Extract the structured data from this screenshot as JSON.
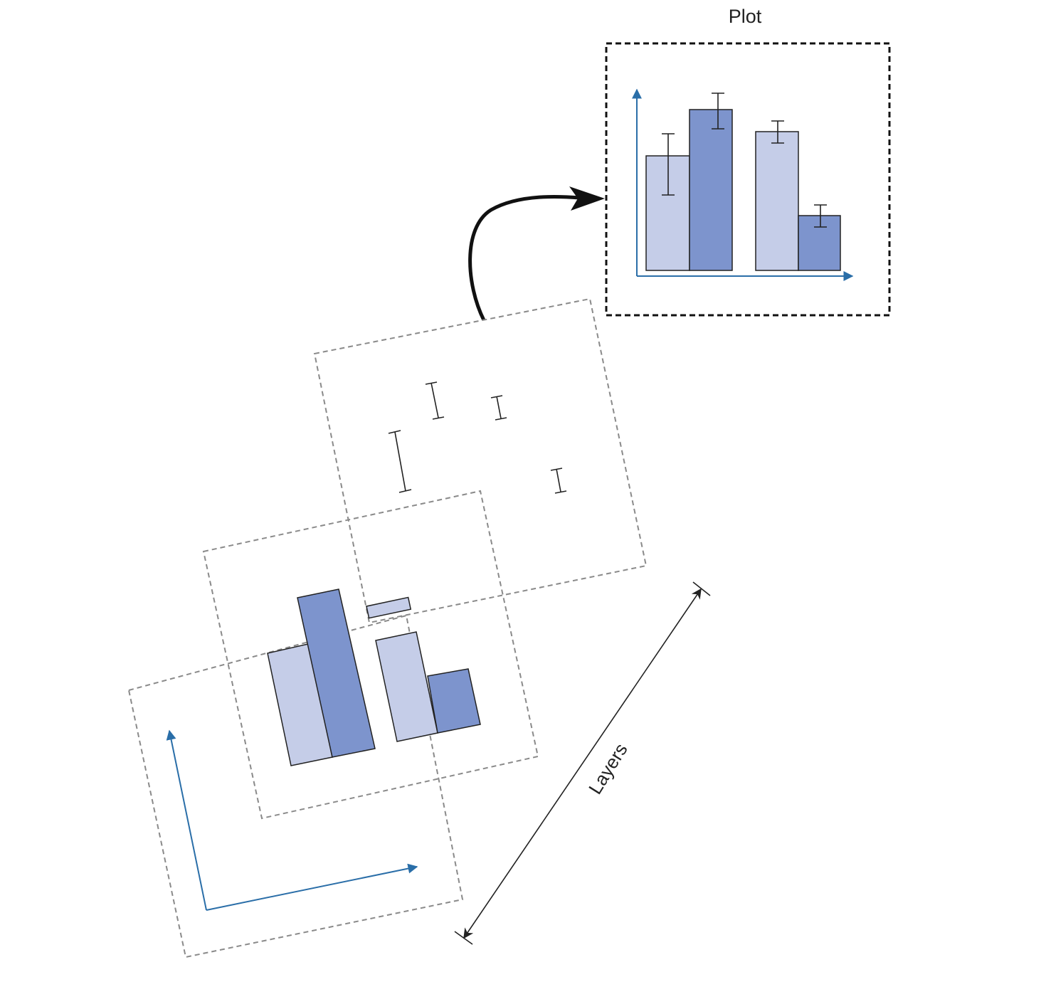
{
  "title": "Plot",
  "dimension_label": "Layers",
  "colors": {
    "light_bar": "#c5cde8",
    "dark_bar": "#7d94cd",
    "axis": "#2a6ea8",
    "outline": "#222222",
    "layer_border": "#8a8a8a",
    "frame_border": "#111111"
  }
}
